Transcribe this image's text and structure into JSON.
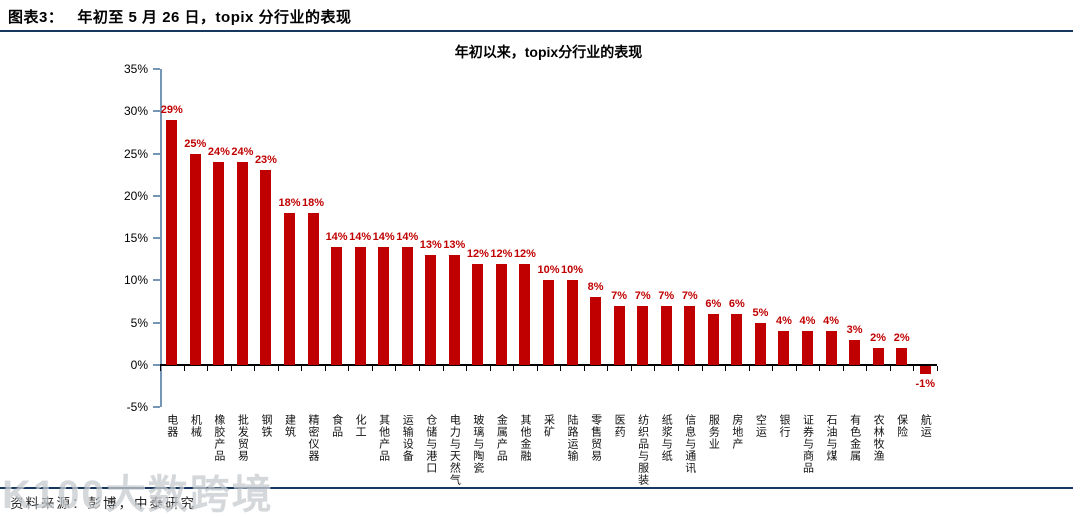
{
  "page": {
    "caption_label": "图表3：",
    "caption_text": "年初至 5 月 26 日，topix 分行业的表现",
    "source_text": "资料来源：彭博，中泰研究",
    "watermark_text": "K100大数跨境"
  },
  "chart_data": {
    "type": "bar",
    "title": "年初以来，topix分行业的表现",
    "unit": "%",
    "categories": [
      "电器",
      "机械",
      "橡胶产品",
      "批发贸易",
      "钢铁",
      "建筑",
      "精密仪器",
      "食品",
      "化工",
      "其他产品",
      "运输设备",
      "仓储与港口",
      "电力与天然气",
      "玻璃与陶瓷",
      "金属产品",
      "其他金融",
      "采矿",
      "陆路运输",
      "零售贸易",
      "医药",
      "纺织品与服装",
      "纸浆与纸",
      "信息与通讯",
      "服务业",
      "房地产",
      "空运",
      "银行",
      "证券与商品",
      "石油与煤",
      "有色金属",
      "农林牧渔",
      "保险",
      "航运"
    ],
    "values": [
      29,
      25,
      24,
      24,
      23,
      18,
      18,
      14,
      14,
      14,
      14,
      13,
      13,
      12,
      12,
      12,
      10,
      10,
      8,
      7,
      7,
      7,
      7,
      6,
      6,
      5,
      4,
      4,
      4,
      3,
      2,
      2,
      -1
    ],
    "value_labels": [
      "29%",
      "25%",
      "24%",
      "24%",
      "23%",
      "18%",
      "18%",
      "14%",
      "14%",
      "14%",
      "14%",
      "13%",
      "13%",
      "12%",
      "12%",
      "12%",
      "10%",
      "10%",
      "8%",
      "7%",
      "7%",
      "7%",
      "7%",
      "6%",
      "6%",
      "5%",
      "4%",
      "4%",
      "4%",
      "3%",
      "2%",
      "2%",
      "-1%"
    ],
    "ylim": [
      -5,
      35
    ],
    "ytick_labels": [
      "35%",
      "30%",
      "25%",
      "20%",
      "15%",
      "10%",
      "5%",
      "0%",
      "-5%"
    ],
    "ytick_values": [
      35,
      30,
      25,
      20,
      15,
      10,
      5,
      0,
      -5
    ],
    "grid": false,
    "legend": false,
    "bar_color": "#C00000",
    "value_label_color": "#C00000",
    "yaxis_color": "#7596B5",
    "xaxis_color": "#000000",
    "rule_color": "#17375E"
  }
}
